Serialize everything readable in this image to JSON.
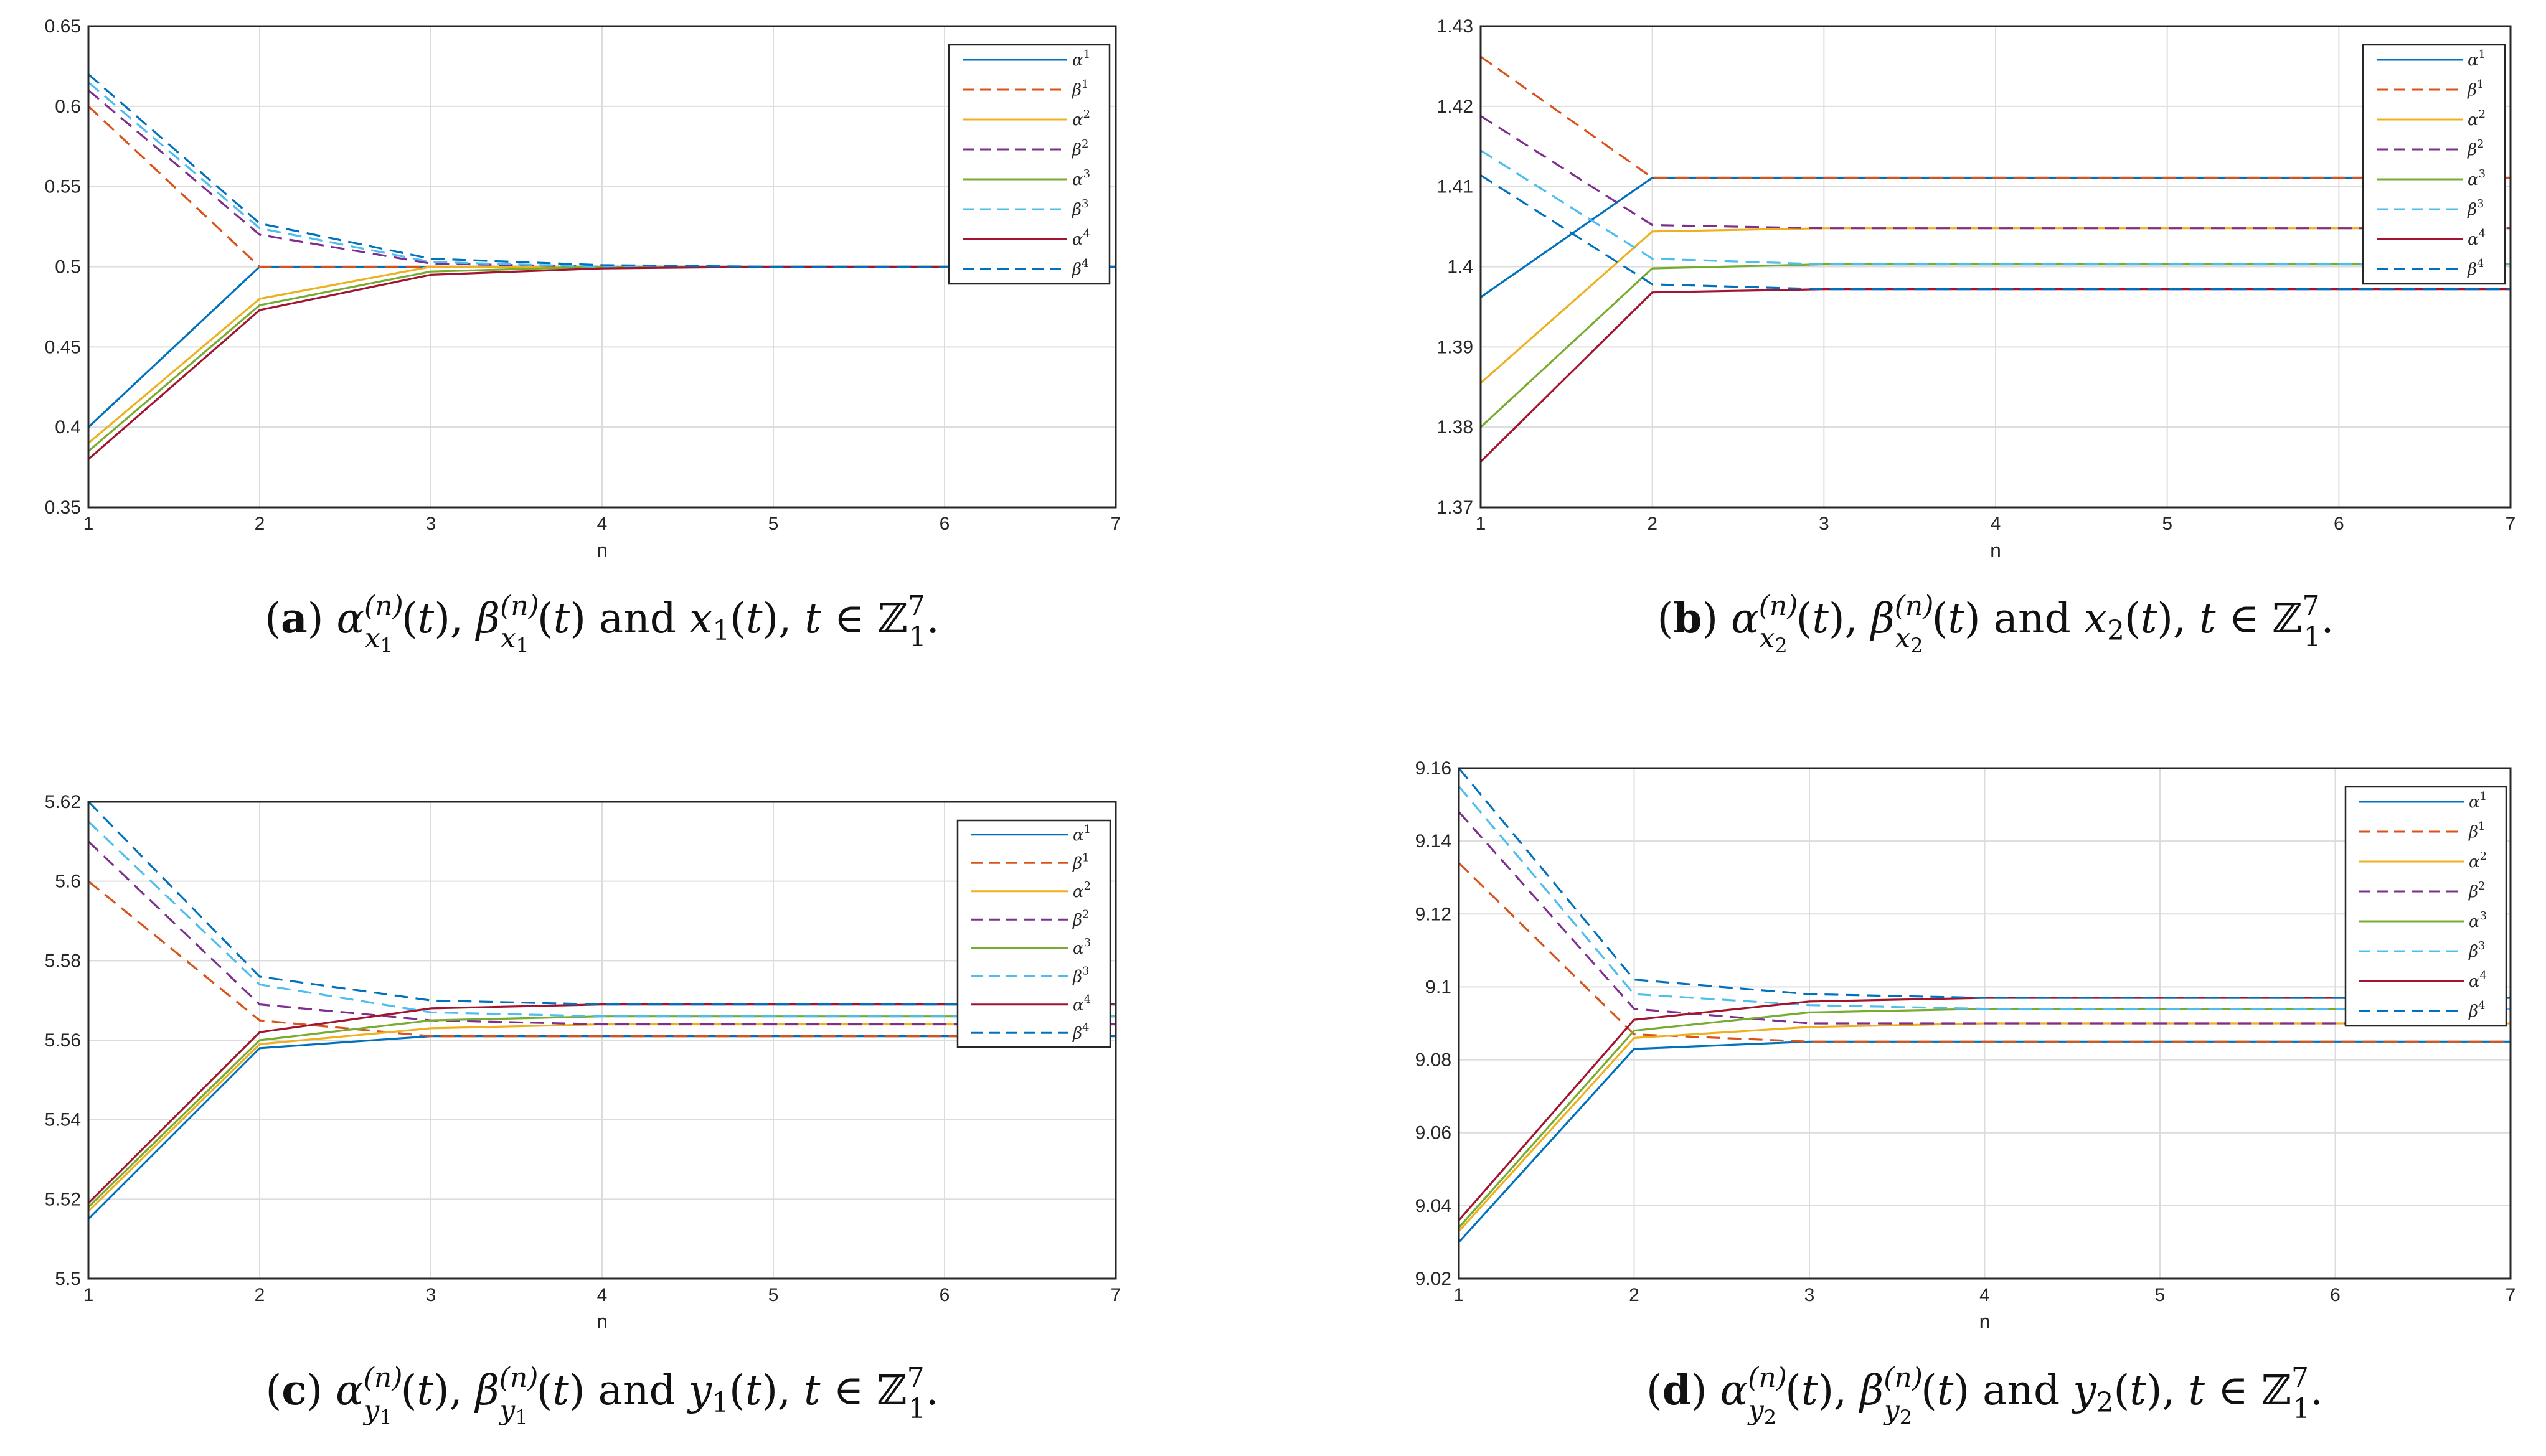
{
  "figure": {
    "series_colors": [
      "#0072BD",
      "#D95319",
      "#EDB120",
      "#7E2F8E",
      "#77AC30",
      "#4DBEEE",
      "#A2142F",
      "#0072BD"
    ],
    "legend_entries": [
      {
        "sym": "α",
        "sup": "1"
      },
      {
        "sym": "β",
        "sup": "1"
      },
      {
        "sym": "α",
        "sup": "2"
      },
      {
        "sym": "β",
        "sup": "2"
      },
      {
        "sym": "α",
        "sup": "3"
      },
      {
        "sym": "β",
        "sup": "3"
      },
      {
        "sym": "α",
        "sup": "4"
      },
      {
        "sym": "β",
        "sup": "4"
      }
    ]
  },
  "chart_data": [
    {
      "type": "line",
      "panel": "(a)",
      "caption": "α_{x1}^{(n)}(t), β_{x1}^{(n)}(t) and x1(t), t ∈ Z_1^7.",
      "xlabel": "n",
      "ylabel": "",
      "xlim": [
        1,
        7
      ],
      "ylim": [
        0.35,
        0.65
      ],
      "xticks": [
        1,
        2,
        3,
        4,
        5,
        6,
        7
      ],
      "yticks": [
        "0.35",
        "0.4",
        "0.45",
        "0.5",
        "0.55",
        "0.6",
        "0.65"
      ],
      "grid": true,
      "legend_position": "top-right",
      "x": [
        1,
        2,
        3,
        4,
        5,
        6,
        7
      ],
      "series": [
        {
          "name": "α1",
          "style": "solid",
          "values": [
            0.4,
            0.5,
            0.5,
            0.5,
            0.5,
            0.5,
            0.5
          ]
        },
        {
          "name": "β1",
          "style": "dashed",
          "values": [
            0.6,
            0.5,
            0.5,
            0.5,
            0.5,
            0.5,
            0.5
          ]
        },
        {
          "name": "α2",
          "style": "solid",
          "values": [
            0.39,
            0.48,
            0.5,
            0.5,
            0.5,
            0.5,
            0.5
          ]
        },
        {
          "name": "β2",
          "style": "dashed",
          "values": [
            0.61,
            0.52,
            0.502,
            0.5,
            0.5,
            0.5,
            0.5
          ]
        },
        {
          "name": "α3",
          "style": "solid",
          "values": [
            0.385,
            0.476,
            0.497,
            0.5,
            0.5,
            0.5,
            0.5
          ]
        },
        {
          "name": "β3",
          "style": "dashed",
          "values": [
            0.615,
            0.524,
            0.503,
            0.5,
            0.5,
            0.5,
            0.5
          ]
        },
        {
          "name": "α4",
          "style": "solid",
          "values": [
            0.38,
            0.473,
            0.495,
            0.499,
            0.5,
            0.5,
            0.5
          ]
        },
        {
          "name": "β4",
          "style": "dashed",
          "values": [
            0.62,
            0.527,
            0.505,
            0.501,
            0.5,
            0.5,
            0.5
          ]
        }
      ]
    },
    {
      "type": "line",
      "panel": "(b)",
      "caption": "α_{x2}^{(n)}(t), β_{x2}^{(n)}(t) and x2(t), t ∈ Z_1^7.",
      "xlabel": "n",
      "ylabel": "",
      "xlim": [
        1,
        7
      ],
      "ylim": [
        1.37,
        1.43
      ],
      "xticks": [
        1,
        2,
        3,
        4,
        5,
        6,
        7
      ],
      "yticks": [
        "1.37",
        "1.38",
        "1.39",
        "1.4",
        "1.41",
        "1.42",
        "1.43"
      ],
      "grid": true,
      "legend_position": "top-right",
      "x": [
        1,
        2,
        3,
        4,
        5,
        6,
        7
      ],
      "series": [
        {
          "name": "α1",
          "style": "solid",
          "values": [
            1.3962,
            1.4111,
            1.4111,
            1.4111,
            1.4111,
            1.4111,
            1.4111
          ]
        },
        {
          "name": "β1",
          "style": "dashed",
          "values": [
            1.4262,
            1.4111,
            1.4111,
            1.4111,
            1.4111,
            1.4111,
            1.4111
          ]
        },
        {
          "name": "α2",
          "style": "solid",
          "values": [
            1.3855,
            1.4044,
            1.4048,
            1.4048,
            1.4048,
            1.4048,
            1.4048
          ]
        },
        {
          "name": "β2",
          "style": "dashed",
          "values": [
            1.4188,
            1.4052,
            1.4048,
            1.4048,
            1.4048,
            1.4048,
            1.4048
          ]
        },
        {
          "name": "α3",
          "style": "solid",
          "values": [
            1.38,
            1.3998,
            1.4003,
            1.4003,
            1.4003,
            1.4003,
            1.4003
          ]
        },
        {
          "name": "β3",
          "style": "dashed",
          "values": [
            1.4145,
            1.401,
            1.4003,
            1.4003,
            1.4003,
            1.4003,
            1.4003
          ]
        },
        {
          "name": "α4",
          "style": "solid",
          "values": [
            1.3757,
            1.3968,
            1.3972,
            1.3972,
            1.3972,
            1.3972,
            1.3972
          ]
        },
        {
          "name": "β4",
          "style": "dashed",
          "values": [
            1.4114,
            1.3978,
            1.3972,
            1.3972,
            1.3972,
            1.3972,
            1.3972
          ]
        }
      ]
    },
    {
      "type": "line",
      "panel": "(c)",
      "caption": "α_{y1}^{(n)}(t), β_{y1}^{(n)}(t) and y1(t), t ∈ Z_1^7.",
      "xlabel": "n",
      "ylabel": "",
      "xlim": [
        1,
        7
      ],
      "ylim": [
        5.5,
        5.62
      ],
      "xticks": [
        1,
        2,
        3,
        4,
        5,
        6,
        7
      ],
      "yticks": [
        "5.5",
        "5.52",
        "5.54",
        "5.56",
        "5.58",
        "5.6",
        "5.62"
      ],
      "grid": true,
      "legend_position": "top-right",
      "x": [
        1,
        2,
        3,
        4,
        5,
        6,
        7
      ],
      "series": [
        {
          "name": "α1",
          "style": "solid",
          "values": [
            5.515,
            5.558,
            5.561,
            5.561,
            5.561,
            5.561,
            5.561
          ]
        },
        {
          "name": "β1",
          "style": "dashed",
          "values": [
            5.6,
            5.565,
            5.561,
            5.561,
            5.561,
            5.561,
            5.561
          ]
        },
        {
          "name": "α2",
          "style": "solid",
          "values": [
            5.517,
            5.559,
            5.563,
            5.564,
            5.564,
            5.564,
            5.564
          ]
        },
        {
          "name": "β2",
          "style": "dashed",
          "values": [
            5.61,
            5.569,
            5.565,
            5.564,
            5.564,
            5.564,
            5.564
          ]
        },
        {
          "name": "α3",
          "style": "solid",
          "values": [
            5.518,
            5.56,
            5.565,
            5.566,
            5.566,
            5.566,
            5.566
          ]
        },
        {
          "name": "β3",
          "style": "dashed",
          "values": [
            5.615,
            5.574,
            5.567,
            5.566,
            5.566,
            5.566,
            5.566
          ]
        },
        {
          "name": "α4",
          "style": "solid",
          "values": [
            5.519,
            5.562,
            5.568,
            5.569,
            5.569,
            5.569,
            5.569
          ]
        },
        {
          "name": "β4",
          "style": "dashed",
          "values": [
            5.62,
            5.576,
            5.57,
            5.569,
            5.569,
            5.569,
            5.569
          ]
        }
      ]
    },
    {
      "type": "line",
      "panel": "(d)",
      "caption": "α_{y2}^{(n)}(t), β_{y2}^{(n)}(t) and y2(t), t ∈ Z_1^7.",
      "xlabel": "n",
      "ylabel": "",
      "xlim": [
        1,
        7
      ],
      "ylim": [
        9.02,
        9.16
      ],
      "xticks": [
        1,
        2,
        3,
        4,
        5,
        6,
        7
      ],
      "yticks": [
        "9.02",
        "9.04",
        "9.06",
        "9.08",
        "9.1",
        "9.12",
        "9.14",
        "9.16"
      ],
      "grid": true,
      "legend_position": "top-right",
      "x": [
        1,
        2,
        3,
        4,
        5,
        6,
        7
      ],
      "series": [
        {
          "name": "α1",
          "style": "solid",
          "values": [
            9.03,
            9.083,
            9.085,
            9.085,
            9.085,
            9.085,
            9.085
          ]
        },
        {
          "name": "β1",
          "style": "dashed",
          "values": [
            9.134,
            9.087,
            9.085,
            9.085,
            9.085,
            9.085,
            9.085
          ]
        },
        {
          "name": "α2",
          "style": "solid",
          "values": [
            9.033,
            9.086,
            9.089,
            9.09,
            9.09,
            9.09,
            9.09
          ]
        },
        {
          "name": "β2",
          "style": "dashed",
          "values": [
            9.148,
            9.094,
            9.09,
            9.09,
            9.09,
            9.09,
            9.09
          ]
        },
        {
          "name": "α3",
          "style": "solid",
          "values": [
            9.034,
            9.088,
            9.093,
            9.094,
            9.094,
            9.094,
            9.094
          ]
        },
        {
          "name": "β3",
          "style": "dashed",
          "values": [
            9.155,
            9.098,
            9.095,
            9.094,
            9.094,
            9.094,
            9.094
          ]
        },
        {
          "name": "α4",
          "style": "solid",
          "values": [
            9.036,
            9.091,
            9.096,
            9.097,
            9.097,
            9.097,
            9.097
          ]
        },
        {
          "name": "β4",
          "style": "dashed",
          "values": [
            9.16,
            9.102,
            9.098,
            9.097,
            9.097,
            9.097,
            9.097
          ]
        }
      ]
    }
  ]
}
